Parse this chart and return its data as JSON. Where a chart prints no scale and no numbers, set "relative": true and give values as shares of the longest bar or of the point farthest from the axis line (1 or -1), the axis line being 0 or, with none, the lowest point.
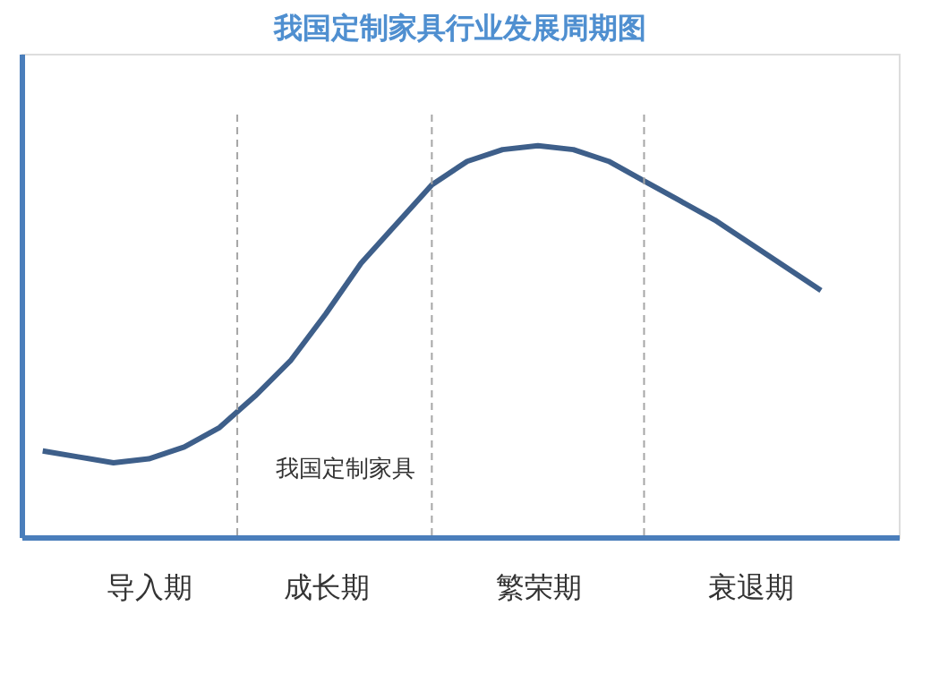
{
  "chart_data": {
    "type": "line",
    "title": "我国定制家具行业发展周期图",
    "relative": true,
    "categories": [
      null,
      null,
      null,
      "导入期",
      null,
      null,
      null,
      null,
      "成长期",
      null,
      null,
      null,
      null,
      null,
      "繁荣期",
      null,
      null,
      null,
      null,
      null,
      "衰退期",
      null,
      null
    ],
    "series": [
      {
        "color": "#3e5f8a",
        "values": [
          0.22,
          0.205,
          0.19,
          0.2,
          0.23,
          0.28,
          0.36,
          0.45,
          0.57,
          0.7,
          0.8,
          0.9,
          0.96,
          0.99,
          1.0,
          0.99,
          0.96,
          0.91,
          0.86,
          0.81,
          0.75,
          0.69,
          0.63
        ]
      }
    ],
    "tick_labels": "x",
    "grid": "x",
    "marker": "none",
    "line_style": "solid",
    "annotations": [
      "我国定制家具"
    ]
  }
}
